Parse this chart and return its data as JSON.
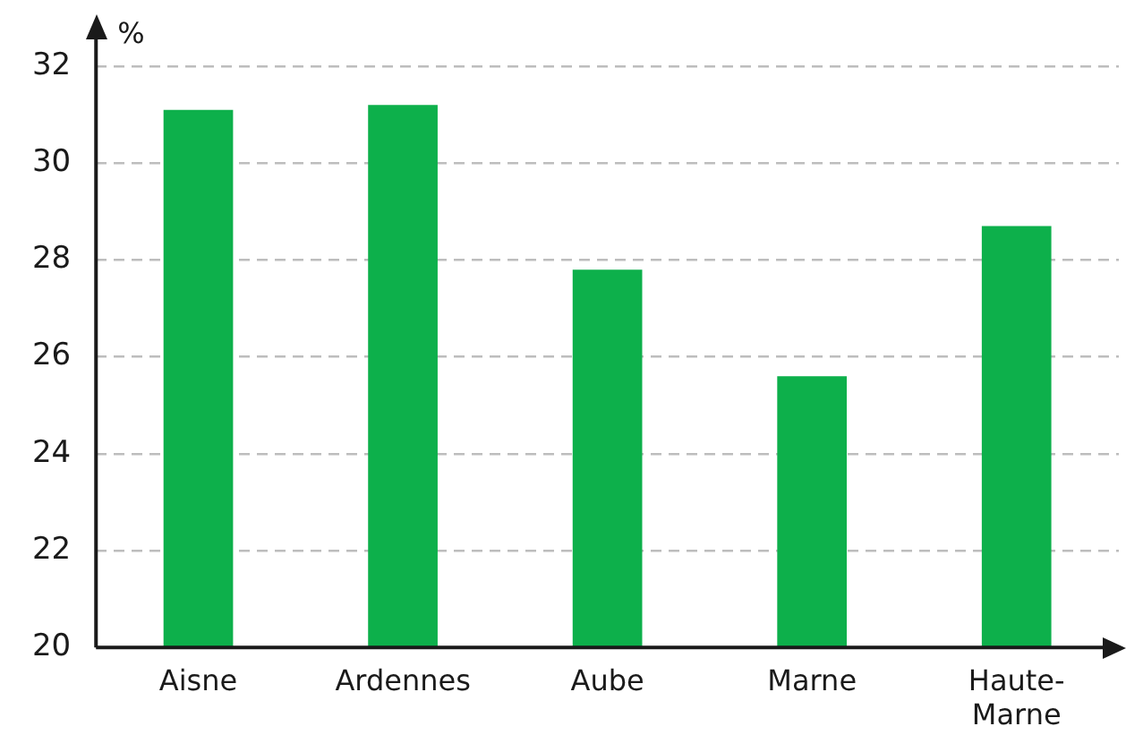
{
  "chart_data": {
    "type": "bar",
    "ylabel": "%",
    "categories": [
      "Aisne",
      "Ardennes",
      "Aube",
      "Marne",
      "Haute-Marne"
    ],
    "values": [
      31.1,
      31.2,
      27.8,
      25.6,
      28.7
    ],
    "color": "#0db04b",
    "ylim": [
      20,
      32
    ],
    "yticks": [
      20,
      22,
      24,
      26,
      28,
      30,
      32
    ],
    "grid": "y"
  }
}
